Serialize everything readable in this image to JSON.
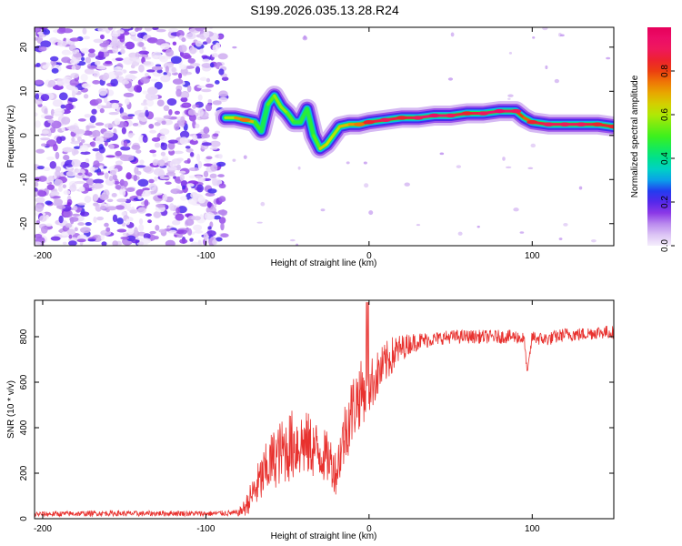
{
  "title": "S199.2026.035.13.28.R24",
  "colors": {
    "snr_line": "#e8322f",
    "axis": "#000000",
    "background": "#ffffff"
  },
  "chart_data": [
    {
      "type": "heatmap",
      "xlabel": "Height of straight line (km)",
      "ylabel": "Frequency (Hz)",
      "xlim": [
        -205,
        150
      ],
      "ylim": [
        -25,
        24.5
      ],
      "x_ticks": [
        -200,
        -100,
        0,
        100
      ],
      "x_tick_labels": [
        "-200",
        "-100",
        "0",
        "100"
      ],
      "y_ticks": [
        -20,
        -10,
        0,
        10,
        20
      ],
      "y_tick_labels": [
        "-20",
        "-10",
        "0",
        "10",
        "20"
      ],
      "noise_region_x": [
        -205,
        -88
      ],
      "ridge": {
        "x": [
          -88,
          -82,
          -76,
          -70,
          -66,
          -62,
          -58,
          -54,
          -50,
          -46,
          -42,
          -38,
          -34,
          -30,
          -26,
          -22,
          -18,
          -12,
          -6,
          0,
          10,
          20,
          30,
          40,
          50,
          60,
          70,
          80,
          90,
          95,
          100,
          110,
          120,
          130,
          140,
          150
        ],
        "y": [
          4,
          4,
          3.5,
          3,
          1,
          7,
          9,
          6.5,
          5,
          3,
          3,
          6,
          0,
          -3,
          -2,
          0,
          2,
          2.5,
          2.5,
          3,
          3.5,
          4,
          4,
          4.5,
          4.5,
          5,
          5,
          5.5,
          5.5,
          4,
          3,
          2.5,
          2.5,
          2.5,
          2.5,
          2
        ],
        "amplitude": [
          0.5,
          0.7,
          0.75,
          0.6,
          0.4,
          0.5,
          0.55,
          0.6,
          0.55,
          0.5,
          0.45,
          0.5,
          0.45,
          0.6,
          0.7,
          0.55,
          0.65,
          0.7,
          0.75,
          0.85,
          0.9,
          0.85,
          0.9,
          0.95,
          0.9,
          0.85,
          0.9,
          0.95,
          0.9,
          0.7,
          0.85,
          0.9,
          0.9,
          0.9,
          0.85,
          0.85
        ]
      },
      "colorbar": {
        "label": "Normalized spectral amplitude",
        "range": [
          0,
          1
        ],
        "ticks": [
          0.0,
          0.2,
          0.4,
          0.6,
          0.8
        ],
        "tick_labels": [
          "0.0",
          "0.2",
          "0.4",
          "0.6",
          "0.8"
        ]
      }
    },
    {
      "type": "line",
      "xlabel": "Height of straight line (km)",
      "ylabel": "SNR (10 * v/v)",
      "xlim": [
        -205,
        150
      ],
      "ylim": [
        0,
        960
      ],
      "x_ticks": [
        -200,
        -100,
        0,
        100
      ],
      "x_tick_labels": [
        "-200",
        "-100",
        "0",
        "100"
      ],
      "y_ticks": [
        0,
        200,
        400,
        600,
        800
      ],
      "y_tick_labels": [
        "0",
        "200",
        "400",
        "600",
        "800"
      ],
      "series": [
        {
          "name": "SNR",
          "x": [
            -205,
            -180,
            -160,
            -140,
            -120,
            -100,
            -90,
            -80,
            -76,
            -72,
            -68,
            -64,
            -60,
            -56,
            -52,
            -48,
            -44,
            -40,
            -36,
            -32,
            -28,
            -24,
            -20,
            -18,
            -16,
            -14,
            -12,
            -10,
            -8,
            -6,
            -4,
            -2,
            0,
            4,
            8,
            12,
            16,
            20,
            25,
            30,
            40,
            50,
            60,
            70,
            80,
            90,
            95,
            97,
            100,
            105,
            110,
            120,
            130,
            140,
            150
          ],
          "y": [
            20,
            22,
            24,
            22,
            24,
            22,
            24,
            25,
            50,
            100,
            150,
            200,
            250,
            280,
            300,
            320,
            330,
            330,
            320,
            300,
            280,
            260,
            200,
            280,
            340,
            400,
            450,
            480,
            520,
            540,
            560,
            560,
            580,
            620,
            660,
            700,
            730,
            750,
            770,
            780,
            790,
            800,
            800,
            800,
            800,
            800,
            790,
            640,
            800,
            790,
            790,
            810,
            810,
            820,
            820
          ],
          "noise_amplitude": [
            12,
            12,
            12,
            12,
            12,
            12,
            12,
            14,
            40,
            70,
            100,
            120,
            130,
            140,
            150,
            160,
            160,
            150,
            140,
            130,
            120,
            110,
            100,
            120,
            140,
            150,
            160,
            160,
            150,
            150,
            140,
            130,
            120,
            110,
            100,
            90,
            80,
            60,
            45,
            40,
            30,
            30,
            30,
            30,
            30,
            30,
            30,
            10,
            30,
            30,
            30,
            30,
            30,
            30,
            30
          ]
        }
      ]
    }
  ]
}
